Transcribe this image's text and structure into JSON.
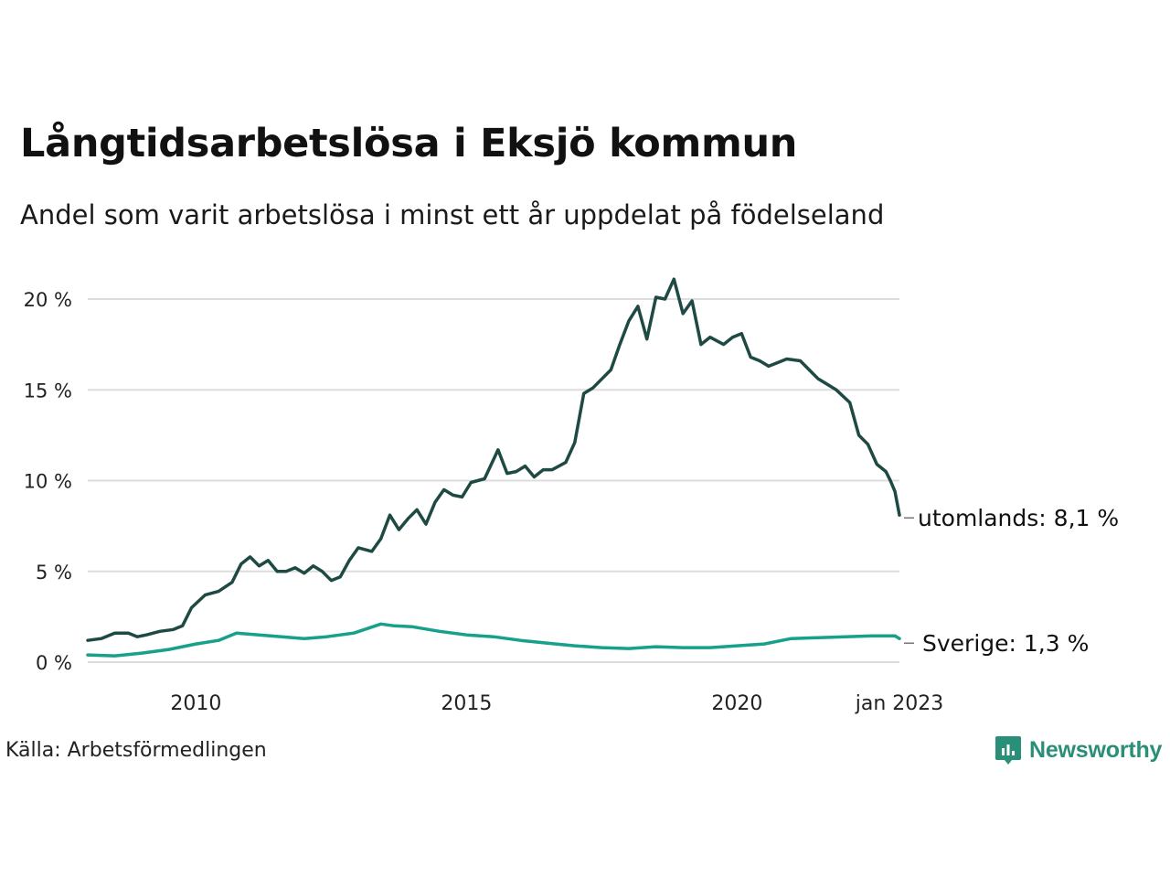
{
  "title": "Långtidsarbetslösa i Eksjö kommun",
  "subtitle": "Andel som varit arbetslösa i minst ett år uppdelat på födelseland",
  "source": "Källa: Arbetsförmedlingen",
  "brand": {
    "name": "Newsworthy",
    "color": "#2a8f78",
    "icon": "newsworthy-logo-icon"
  },
  "colors": {
    "utomlands": "#1f4a44",
    "sverige": "#17a08a",
    "grid": "#dddddd"
  },
  "chart_data": {
    "type": "line",
    "title": "Långtidsarbetslösa i Eksjö kommun",
    "subtitle": "Andel som varit arbetslösa i minst ett år uppdelat på födelseland",
    "xlabel": "",
    "ylabel": "",
    "ylim": [
      0,
      22
    ],
    "yticks": [
      0,
      5,
      10,
      15,
      20
    ],
    "ytick_labels": [
      "0 %",
      "5 %",
      "10 %",
      "15 %",
      "20 %"
    ],
    "xlim": [
      "2008-01",
      "2023-01"
    ],
    "xticks": [
      "2010-01",
      "2015-01",
      "2020-01",
      "2023-01"
    ],
    "xtick_labels": [
      "2010",
      "2015",
      "2020",
      "jan 2023"
    ],
    "grid": "horizontal",
    "series": [
      {
        "name": "utomlands",
        "end_label": "utomlands: 8,1 %",
        "points": [
          [
            "2008-01",
            1.2
          ],
          [
            "2008-04",
            1.3
          ],
          [
            "2008-07",
            1.6
          ],
          [
            "2008-10",
            1.6
          ],
          [
            "2008-12",
            1.4
          ],
          [
            "2009-02",
            1.5
          ],
          [
            "2009-05",
            1.7
          ],
          [
            "2009-08",
            1.8
          ],
          [
            "2009-10",
            2.0
          ],
          [
            "2009-12",
            3.0
          ],
          [
            "2010-03",
            3.7
          ],
          [
            "2010-06",
            3.9
          ],
          [
            "2010-09",
            4.4
          ],
          [
            "2010-11",
            5.4
          ],
          [
            "2011-01",
            5.8
          ],
          [
            "2011-03",
            5.3
          ],
          [
            "2011-05",
            5.6
          ],
          [
            "2011-07",
            5.0
          ],
          [
            "2011-09",
            5.0
          ],
          [
            "2011-11",
            5.2
          ],
          [
            "2012-01",
            4.9
          ],
          [
            "2012-03",
            5.3
          ],
          [
            "2012-05",
            5.0
          ],
          [
            "2012-07",
            4.5
          ],
          [
            "2012-09",
            4.7
          ],
          [
            "2012-11",
            5.6
          ],
          [
            "2013-01",
            6.3
          ],
          [
            "2013-04",
            6.1
          ],
          [
            "2013-06",
            6.8
          ],
          [
            "2013-08",
            8.1
          ],
          [
            "2013-10",
            7.3
          ],
          [
            "2013-12",
            7.9
          ],
          [
            "2014-02",
            8.4
          ],
          [
            "2014-04",
            7.6
          ],
          [
            "2014-06",
            8.8
          ],
          [
            "2014-08",
            9.5
          ],
          [
            "2014-10",
            9.2
          ],
          [
            "2014-12",
            9.1
          ],
          [
            "2015-02",
            9.9
          ],
          [
            "2015-05",
            10.1
          ],
          [
            "2015-08",
            11.7
          ],
          [
            "2015-10",
            10.4
          ],
          [
            "2015-12",
            10.5
          ],
          [
            "2016-02",
            10.8
          ],
          [
            "2016-04",
            10.2
          ],
          [
            "2016-06",
            10.6
          ],
          [
            "2016-08",
            10.6
          ],
          [
            "2016-11",
            11.0
          ],
          [
            "2017-01",
            12.1
          ],
          [
            "2017-03",
            14.8
          ],
          [
            "2017-05",
            15.1
          ],
          [
            "2017-07",
            15.6
          ],
          [
            "2017-09",
            16.1
          ],
          [
            "2017-11",
            17.5
          ],
          [
            "2018-01",
            18.8
          ],
          [
            "2018-03",
            19.6
          ],
          [
            "2018-05",
            17.8
          ],
          [
            "2018-07",
            20.1
          ],
          [
            "2018-09",
            20.0
          ],
          [
            "2018-11",
            21.1
          ],
          [
            "2019-01",
            19.2
          ],
          [
            "2019-03",
            19.9
          ],
          [
            "2019-05",
            17.5
          ],
          [
            "2019-07",
            17.9
          ],
          [
            "2019-10",
            17.5
          ],
          [
            "2019-12",
            17.9
          ],
          [
            "2020-02",
            18.1
          ],
          [
            "2020-04",
            16.8
          ],
          [
            "2020-06",
            16.6
          ],
          [
            "2020-08",
            16.3
          ],
          [
            "2020-10",
            16.5
          ],
          [
            "2020-12",
            16.7
          ],
          [
            "2021-03",
            16.6
          ],
          [
            "2021-05",
            16.1
          ],
          [
            "2021-07",
            15.6
          ],
          [
            "2021-09",
            15.3
          ],
          [
            "2021-11",
            15.0
          ],
          [
            "2022-02",
            14.3
          ],
          [
            "2022-04",
            12.5
          ],
          [
            "2022-06",
            12.0
          ],
          [
            "2022-08",
            10.9
          ],
          [
            "2022-10",
            10.5
          ],
          [
            "2022-11",
            10.0
          ],
          [
            "2022-12",
            9.4
          ],
          [
            "2023-01",
            8.1
          ]
        ]
      },
      {
        "name": "Sverige",
        "end_label": "Sverige: 1,3 %",
        "points": [
          [
            "2008-01",
            0.4
          ],
          [
            "2008-07",
            0.35
          ],
          [
            "2009-01",
            0.5
          ],
          [
            "2009-07",
            0.7
          ],
          [
            "2010-01",
            1.0
          ],
          [
            "2010-06",
            1.2
          ],
          [
            "2010-10",
            1.6
          ],
          [
            "2011-03",
            1.5
          ],
          [
            "2011-08",
            1.4
          ],
          [
            "2012-01",
            1.3
          ],
          [
            "2012-06",
            1.4
          ],
          [
            "2012-12",
            1.6
          ],
          [
            "2013-06",
            2.1
          ],
          [
            "2013-09",
            2.0
          ],
          [
            "2014-01",
            1.95
          ],
          [
            "2014-07",
            1.7
          ],
          [
            "2015-01",
            1.5
          ],
          [
            "2015-07",
            1.4
          ],
          [
            "2016-01",
            1.2
          ],
          [
            "2016-07",
            1.05
          ],
          [
            "2017-01",
            0.9
          ],
          [
            "2017-07",
            0.8
          ],
          [
            "2018-01",
            0.75
          ],
          [
            "2018-07",
            0.85
          ],
          [
            "2019-01",
            0.8
          ],
          [
            "2019-07",
            0.8
          ],
          [
            "2020-01",
            0.9
          ],
          [
            "2020-07",
            1.0
          ],
          [
            "2021-01",
            1.3
          ],
          [
            "2021-07",
            1.35
          ],
          [
            "2022-01",
            1.4
          ],
          [
            "2022-07",
            1.45
          ],
          [
            "2022-12",
            1.45
          ],
          [
            "2023-01",
            1.3
          ]
        ]
      }
    ]
  }
}
